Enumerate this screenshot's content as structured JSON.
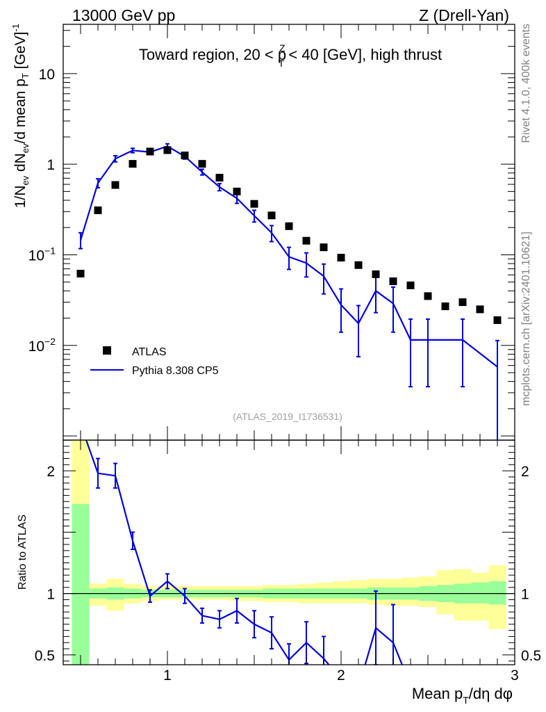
{
  "header": {
    "left": "13000 GeV pp",
    "right": "Z (Drell-Yan)"
  },
  "side_labels": {
    "version": "Rivet 4.1.0,  400k events",
    "source": "mcplots.cern.ch [arXiv:2401.10621]"
  },
  "colors": {
    "mc": "#0000dd",
    "data": "#000000",
    "band_stat": "#99ff99",
    "band_total": "#ffff99"
  },
  "chart_data": [
    {
      "type": "scatter",
      "panel": "main",
      "title": "Toward region, 20 < pTZ < 40 [GeV], high thrust",
      "title_parts": {
        "pre": "Toward region, 20 < p",
        "sup": "Z",
        "sub": "T",
        "post": " < 40 [GeV], high thrust"
      },
      "ylabel": "1/Nev dNev/d mean pT [GeV]-1",
      "ylabel_parts": {
        "a": "1/N",
        "b": "ev",
        "c": " dN",
        "d": "ev",
        "e": "/d mean p",
        "f": "T",
        "g": " [GeV]",
        "h": "-1"
      },
      "yscale": "log",
      "xlim": [
        0.4,
        3.0
      ],
      "ylim": [
        0.0009,
        35
      ],
      "yticks": [
        {
          "value": 10,
          "label": "10"
        },
        {
          "value": 1,
          "label": "1"
        },
        {
          "value": 0.1,
          "label": "10",
          "exp": "−1"
        },
        {
          "value": 0.01,
          "label": "10",
          "exp": "−2"
        }
      ],
      "reference_label": "(ATLAS_2019_I1736531)",
      "legend": {
        "position": "bottom-left",
        "entries": [
          "ATLAS",
          "Pythia 8.308 CP5"
        ]
      },
      "series": [
        {
          "name": "ATLAS",
          "style": "markers",
          "x": [
            0.5,
            0.6,
            0.7,
            0.8,
            0.9,
            1.0,
            1.1,
            1.2,
            1.3,
            1.4,
            1.5,
            1.6,
            1.7,
            1.8,
            1.9,
            2.0,
            2.1,
            2.2,
            2.3,
            2.4,
            2.5,
            2.6,
            2.7,
            2.8,
            2.9
          ],
          "y": [
            0.062,
            0.31,
            0.59,
            1.01,
            1.38,
            1.43,
            1.25,
            1.01,
            0.71,
            0.5,
            0.365,
            0.272,
            0.207,
            0.143,
            0.121,
            0.093,
            0.077,
            0.061,
            0.051,
            0.046,
            0.035,
            0.027,
            0.03,
            0.025,
            0.019
          ]
        },
        {
          "name": "Pythia 8.308 CP5",
          "style": "line",
          "x": [
            0.5,
            0.6,
            0.7,
            0.8,
            0.9,
            1.0,
            1.1,
            1.2,
            1.3,
            1.4,
            1.5,
            1.6,
            1.7,
            1.8,
            1.9,
            2.0,
            2.1,
            2.2,
            2.3,
            2.4,
            2.5,
            2.7,
            2.9
          ],
          "y": [
            0.145,
            0.62,
            1.15,
            1.42,
            1.36,
            1.58,
            1.22,
            0.82,
            0.56,
            0.42,
            0.27,
            0.175,
            0.095,
            0.081,
            0.058,
            0.028,
            0.0175,
            0.04,
            0.029,
            0.0115,
            0.0115,
            0.0115,
            0.0058
          ],
          "err_low": [
            0.028,
            0.07,
            0.09,
            0.08,
            0.08,
            0.1,
            0.08,
            0.06,
            0.05,
            0.05,
            0.04,
            0.035,
            0.026,
            0.024,
            0.021,
            0.014,
            0.01,
            0.017,
            0.015,
            0.008,
            0.008,
            0.008,
            0.0055
          ],
          "err_high": [
            0.03,
            0.07,
            0.09,
            0.08,
            0.08,
            0.1,
            0.08,
            0.06,
            0.05,
            0.05,
            0.04,
            0.035,
            0.026,
            0.024,
            0.021,
            0.014,
            0.01,
            0.017,
            0.015,
            0.008,
            0.008,
            0.008,
            0.0055
          ]
        }
      ]
    },
    {
      "type": "line",
      "panel": "ratio",
      "ylabel": "Ratio to ATLAS",
      "xlabel": "Mean pT/dη dφ",
      "xlabel_parts": {
        "pre": "Mean p",
        "sub": "T",
        "post": "/dη dφ"
      },
      "xlim": [
        0.4,
        3.0
      ],
      "ylim": [
        0.42,
        2.25
      ],
      "xticks": [
        {
          "value": 1,
          "label": "1"
        },
        {
          "value": 2,
          "label": "2"
        },
        {
          "value": 3,
          "label": "3"
        }
      ],
      "yticks": [
        {
          "value": 0.5,
          "label": "0.5"
        },
        {
          "value": 1,
          "label": "1"
        },
        {
          "value": 2,
          "label": "2"
        }
      ],
      "bands": {
        "x_edges": [
          0.45,
          0.55,
          0.65,
          0.75,
          0.85,
          0.95,
          1.05,
          1.15,
          1.25,
          1.35,
          1.45,
          1.55,
          1.65,
          1.75,
          1.85,
          1.95,
          2.05,
          2.15,
          2.25,
          2.35,
          2.45,
          2.55,
          2.65,
          2.75,
          2.85,
          2.95
        ],
        "stat_low": [
          0.3,
          0.96,
          0.95,
          0.96,
          0.97,
          0.97,
          0.97,
          0.97,
          0.97,
          0.97,
          0.97,
          0.96,
          0.96,
          0.96,
          0.96,
          0.96,
          0.96,
          0.95,
          0.95,
          0.95,
          0.94,
          0.93,
          0.92,
          0.92,
          0.91
        ],
        "stat_high": [
          1.73,
          1.04,
          1.05,
          1.04,
          1.03,
          1.03,
          1.03,
          1.03,
          1.03,
          1.03,
          1.03,
          1.04,
          1.04,
          1.04,
          1.04,
          1.04,
          1.04,
          1.05,
          1.05,
          1.05,
          1.06,
          1.07,
          1.08,
          1.09,
          1.1
        ],
        "total_low": [
          0.3,
          0.9,
          0.86,
          0.92,
          0.94,
          0.95,
          0.95,
          0.95,
          0.95,
          0.94,
          0.94,
          0.93,
          0.93,
          0.92,
          0.92,
          0.92,
          0.92,
          0.91,
          0.9,
          0.9,
          0.89,
          0.83,
          0.78,
          0.78,
          0.71
        ],
        "total_high": [
          2.25,
          1.08,
          1.12,
          1.08,
          1.06,
          1.06,
          1.06,
          1.06,
          1.06,
          1.06,
          1.06,
          1.07,
          1.07,
          1.08,
          1.09,
          1.1,
          1.11,
          1.12,
          1.12,
          1.13,
          1.14,
          1.19,
          1.2,
          1.17,
          1.23
        ]
      },
      "series": [
        {
          "name": "Pythia 8.308 CP5 / ATLAS",
          "x": [
            0.5,
            0.6,
            0.7,
            0.8,
            0.9,
            1.0,
            1.1,
            1.2,
            1.3,
            1.4,
            1.5,
            1.6,
            1.7,
            1.8,
            1.9,
            2.0,
            2.1,
            2.2,
            2.3,
            2.4
          ],
          "y": [
            2.38,
            1.98,
            1.96,
            1.43,
            0.98,
            1.1,
            0.98,
            0.82,
            0.79,
            0.86,
            0.75,
            0.68,
            0.46,
            0.6,
            0.47,
            0.3,
            0.23,
            0.72,
            0.6,
            0.25
          ],
          "err": [
            0.0,
            0.12,
            0.1,
            0.07,
            0.05,
            0.06,
            0.06,
            0.06,
            0.07,
            0.1,
            0.11,
            0.13,
            0.13,
            0.17,
            0.18,
            0.0,
            0.0,
            0.3,
            0.31,
            0.0
          ]
        }
      ]
    }
  ]
}
